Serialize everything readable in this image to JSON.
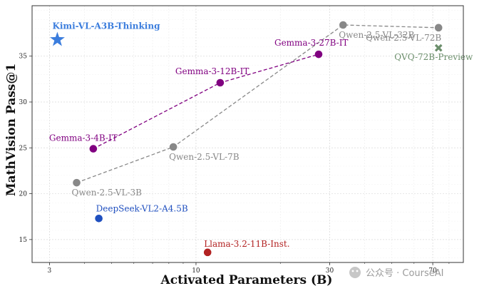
{
  "chart_data": {
    "type": "scatter",
    "xlabel": "Activated Parameters (B)",
    "ylabel": "MathVision Pass@1",
    "xscale": "log",
    "xlim": [
      2.6,
      90
    ],
    "ylim": [
      12.5,
      40.5
    ],
    "xticks": [
      3,
      10,
      30,
      70
    ],
    "yticks": [
      15,
      20,
      25,
      30,
      35
    ],
    "grid": true,
    "points": [
      {
        "label": "Kimi-VL-A3B-Thinking",
        "x": 3.2,
        "y": 36.8,
        "marker": "star",
        "color": "#3b7ddd",
        "bold": true
      },
      {
        "label": "Qwen-2.5-VL-3B",
        "x": 3.75,
        "y": 21.2,
        "marker": "circle",
        "color": "#888888"
      },
      {
        "label": "Qwen-2.5-VL-7B",
        "x": 8.3,
        "y": 25.1,
        "marker": "circle",
        "color": "#888888"
      },
      {
        "label": "Qwen-2.5-VL-32B",
        "x": 33.5,
        "y": 38.4,
        "marker": "circle",
        "color": "#888888"
      },
      {
        "label": "Qwen-2.5-VL-72B",
        "x": 73.4,
        "y": 38.1,
        "marker": "circle",
        "color": "#888888"
      },
      {
        "label": "Gemma-3-4B-IT",
        "x": 4.3,
        "y": 24.9,
        "marker": "circle",
        "color": "#800080"
      },
      {
        "label": "Gemma-3-12B-IT",
        "x": 12.2,
        "y": 32.1,
        "marker": "circle",
        "color": "#800080"
      },
      {
        "label": "Gemma-3-27B-IT",
        "x": 27.4,
        "y": 35.2,
        "marker": "circle",
        "color": "#800080"
      },
      {
        "label": "QVQ-72B-Preview",
        "x": 73.4,
        "y": 35.9,
        "marker": "x",
        "color": "#6b8e6b"
      },
      {
        "label": "DeepSeek-VL2-A4.5B",
        "x": 4.5,
        "y": 17.3,
        "marker": "circle",
        "color": "#1f4fbf"
      },
      {
        "label": "Llama-3.2-11B-Inst.",
        "x": 11.0,
        "y": 13.6,
        "marker": "circle",
        "color": "#b22222"
      }
    ],
    "series_lines": [
      {
        "points": [
          "Qwen-2.5-VL-3B",
          "Qwen-2.5-VL-7B",
          "Qwen-2.5-VL-32B",
          "Qwen-2.5-VL-72B"
        ],
        "color": "#888888",
        "dash": true
      },
      {
        "points": [
          "Gemma-3-4B-IT",
          "Gemma-3-12B-IT",
          "Gemma-3-27B-IT"
        ],
        "color": "#800080",
        "dash": true
      }
    ]
  },
  "watermark": {
    "text": "公众号 · CourseAI"
  }
}
